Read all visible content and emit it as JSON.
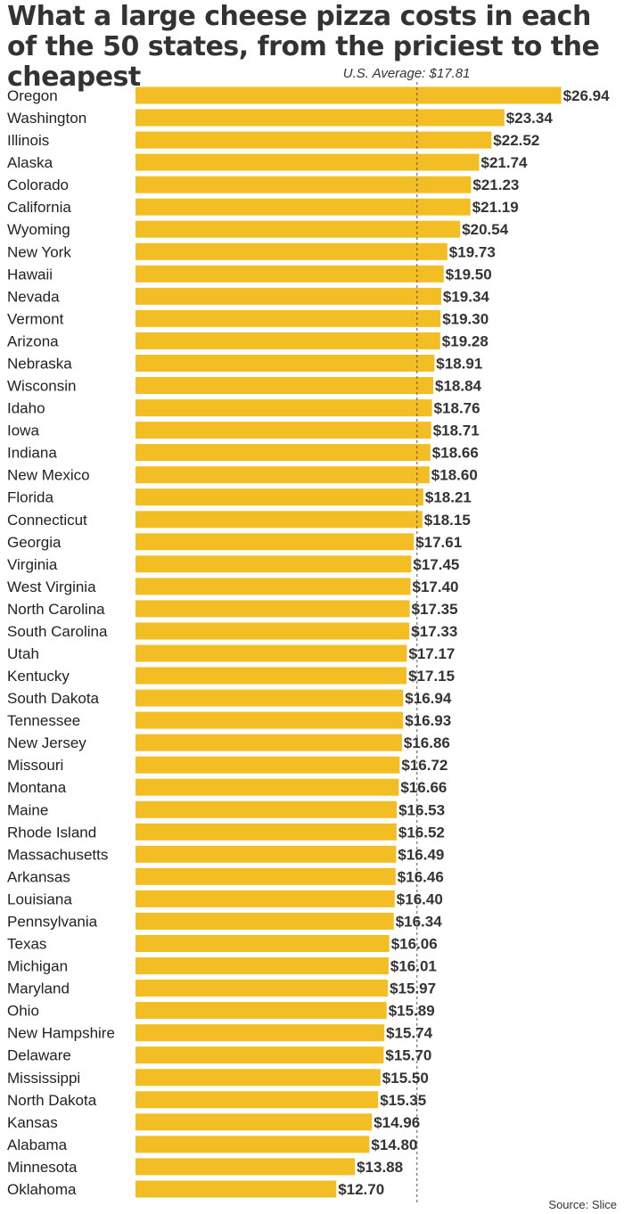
{
  "chart_data": {
    "type": "bar",
    "orientation": "horizontal",
    "title": "What a large cheese pizza costs in each of the 50 states, from the priciest to the cheapest",
    "bar_color": "#f3bd24",
    "average": {
      "label": "U.S. Average: $17.81",
      "value": 17.81
    },
    "source": "Source: Slice",
    "value_prefix": "$",
    "categories": [
      "Oregon",
      "Washington",
      "Illinois",
      "Alaska",
      "Colorado",
      "California",
      "Wyoming",
      "New York",
      "Hawaii",
      "Nevada",
      "Vermont",
      "Arizona",
      "Nebraska",
      "Wisconsin",
      "Idaho",
      "Iowa",
      "Indiana",
      "New Mexico",
      "Florida",
      "Connecticut",
      "Georgia",
      "Virginia",
      "West Virginia",
      "North Carolina",
      "South Carolina",
      "Utah",
      "Kentucky",
      "South Dakota",
      "Tennessee",
      "New Jersey",
      "Missouri",
      "Montana",
      "Maine",
      "Rhode Island",
      "Massachusetts",
      "Arkansas",
      "Louisiana",
      "Pennsylvania",
      "Texas",
      "Michigan",
      "Maryland",
      "Ohio",
      "New Hampshire",
      "Delaware",
      "Mississippi",
      "North Dakota",
      "Kansas",
      "Alabama",
      "Minnesota",
      "Oklahoma"
    ],
    "values": [
      26.94,
      23.34,
      22.52,
      21.74,
      21.23,
      21.19,
      20.54,
      19.73,
      19.5,
      19.34,
      19.3,
      19.28,
      18.91,
      18.84,
      18.76,
      18.71,
      18.66,
      18.6,
      18.21,
      18.15,
      17.61,
      17.45,
      17.4,
      17.35,
      17.33,
      17.17,
      17.15,
      16.94,
      16.93,
      16.86,
      16.72,
      16.66,
      16.53,
      16.52,
      16.49,
      16.46,
      16.4,
      16.34,
      16.06,
      16.01,
      15.97,
      15.89,
      15.74,
      15.7,
      15.5,
      15.35,
      14.96,
      14.8,
      13.88,
      12.7
    ]
  }
}
